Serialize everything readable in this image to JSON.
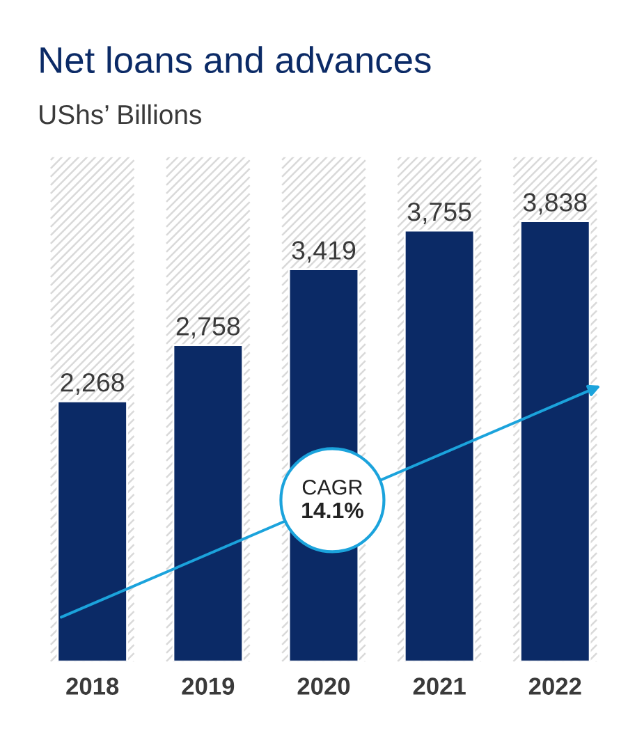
{
  "chart_data": {
    "type": "bar",
    "title": "Net loans and advances",
    "subtitle": "UShs’ Billions",
    "categories": [
      "2018",
      "2019",
      "2020",
      "2021",
      "2022"
    ],
    "values": [
      2268,
      2758,
      3419,
      3755,
      3838
    ],
    "value_labels": [
      "2,268",
      "2,758",
      "3,419",
      "3,755",
      "3,838"
    ],
    "color": "#0b2a66",
    "annotations": [
      "CAGR",
      "14.1%"
    ]
  }
}
